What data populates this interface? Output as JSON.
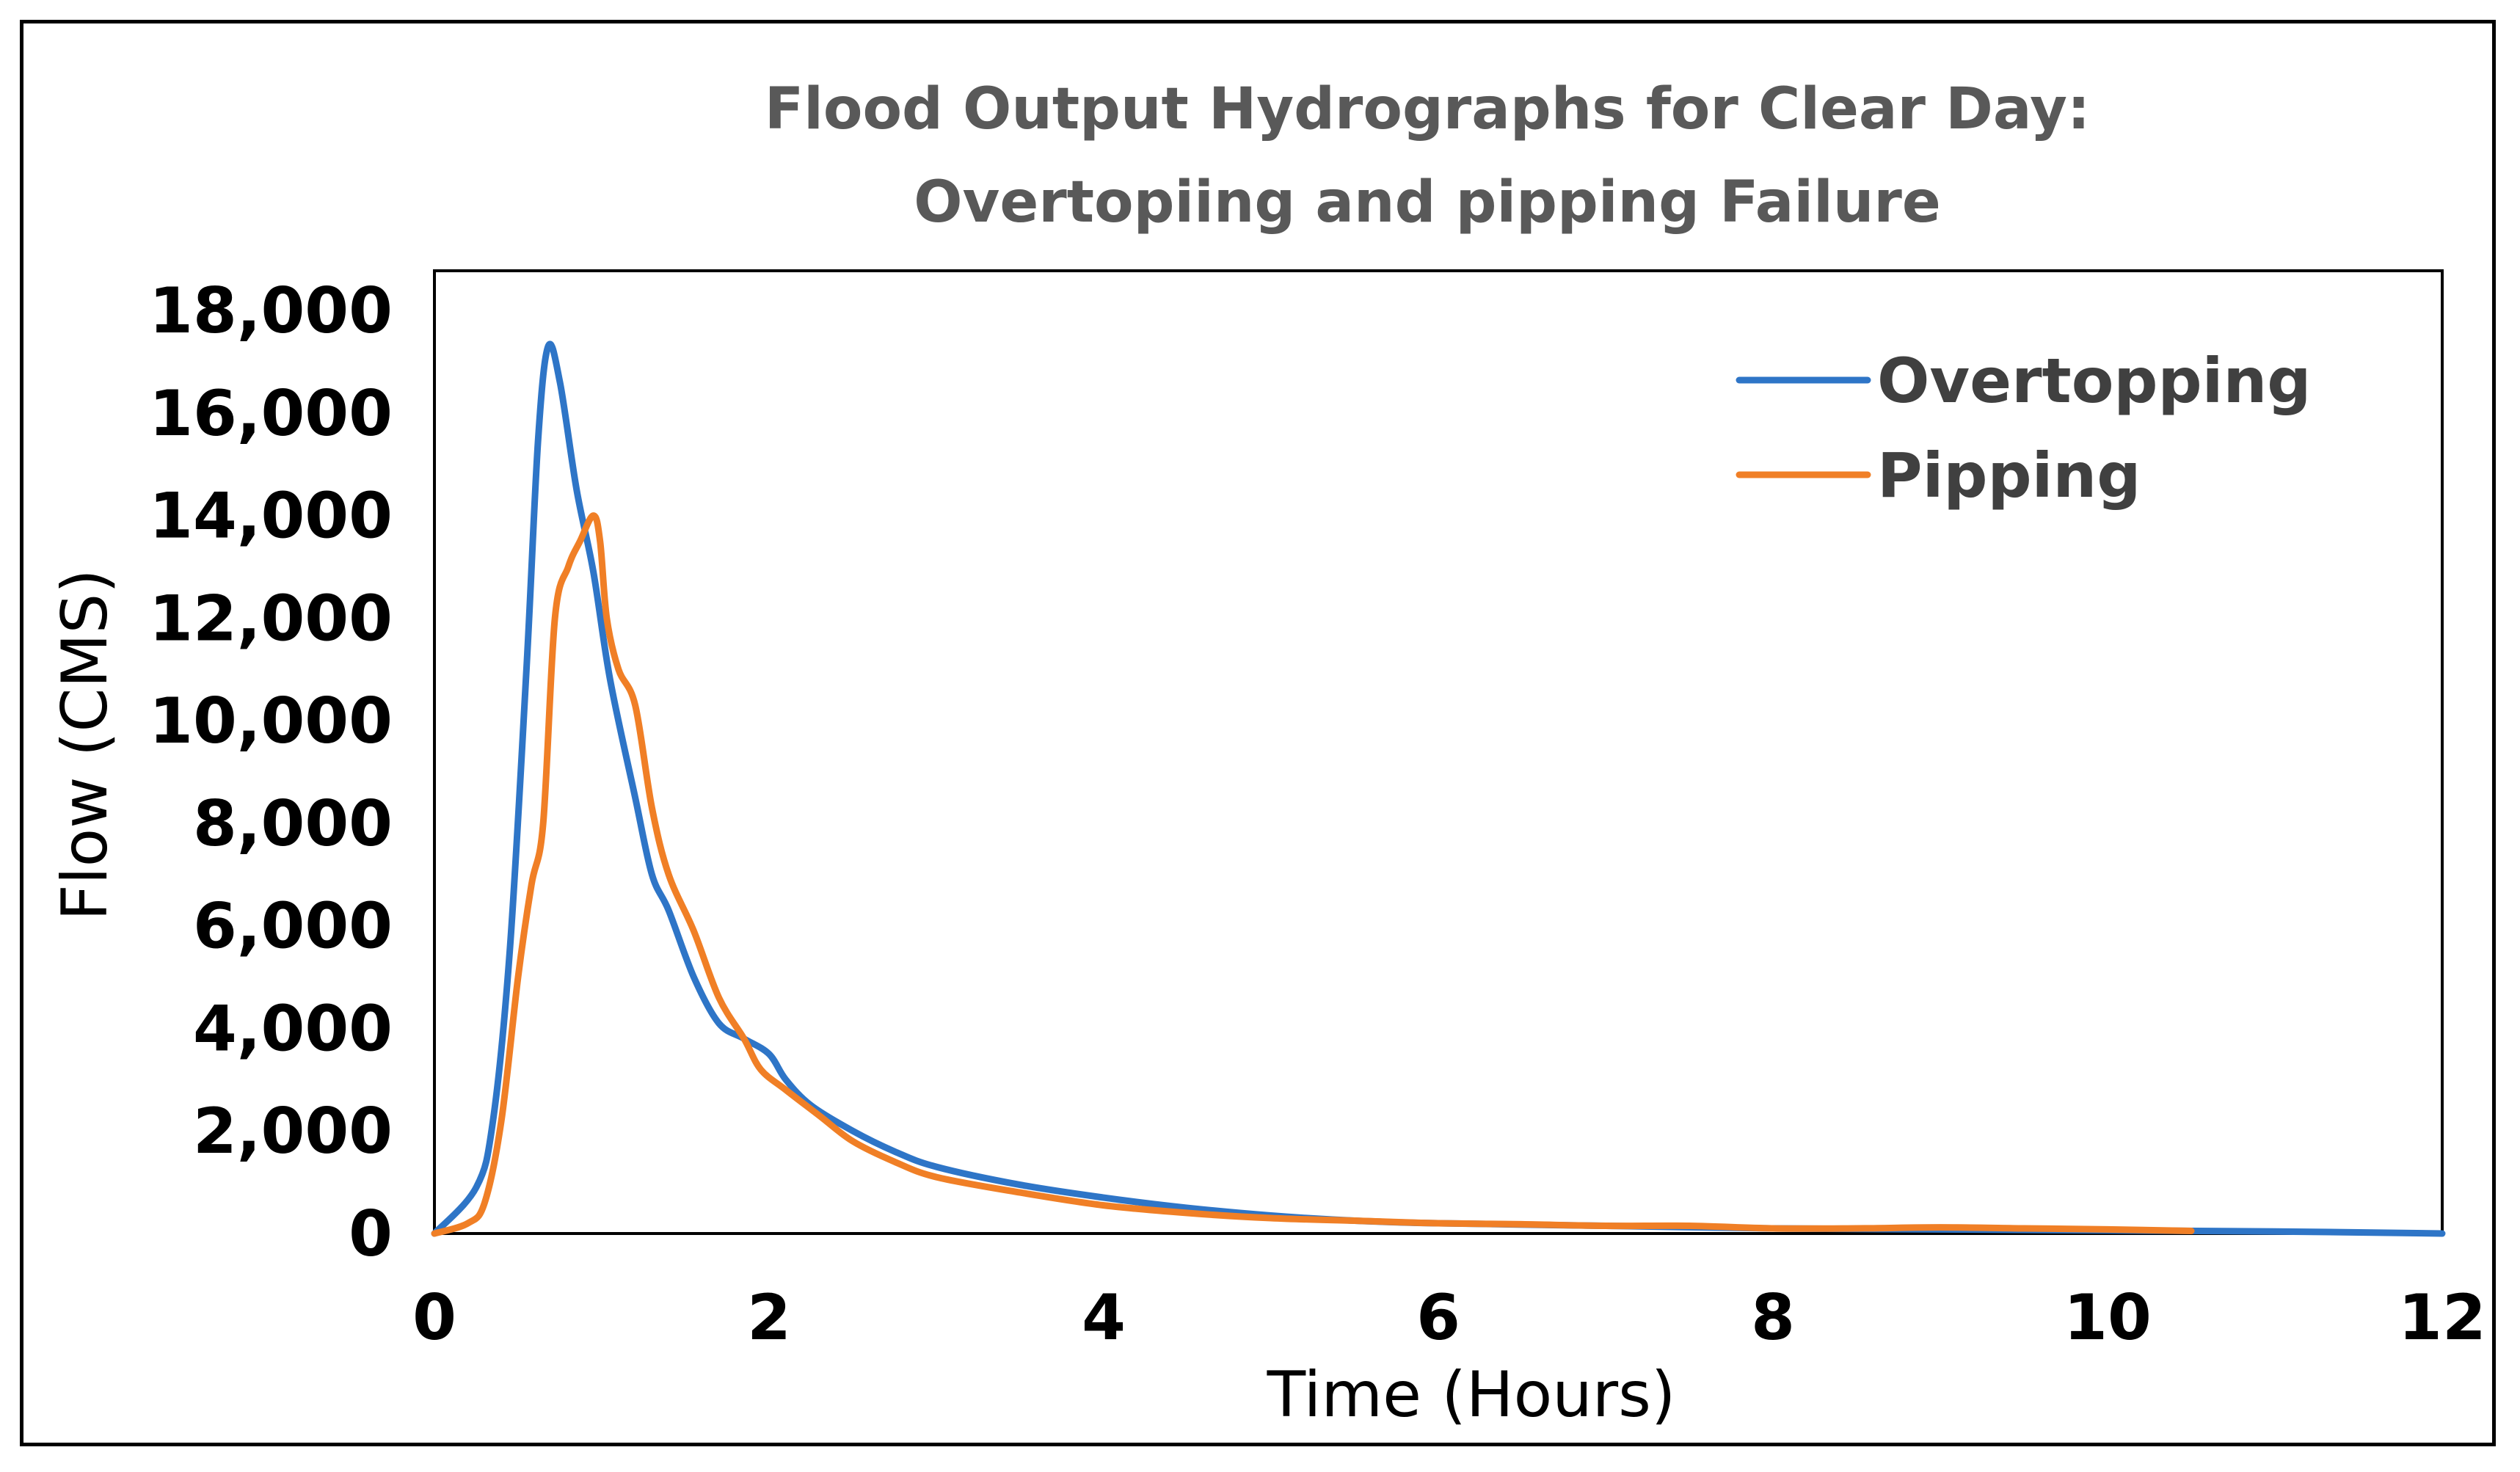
{
  "chart_data": {
    "type": "line",
    "title": [
      "Flood Output Hydrographs for Clear Day:",
      "Overtopiing and pipping Failure"
    ],
    "xlabel": "Time (Hours)",
    "ylabel": "Flow (CMS)",
    "xlim": [
      0,
      12
    ],
    "ylim": [
      0,
      18000
    ],
    "x_ticks": [
      0,
      2,
      4,
      6,
      8,
      10,
      12
    ],
    "x_tick_labels": [
      "0",
      "2",
      "4",
      "6",
      "8",
      "10",
      "12"
    ],
    "y_ticks": [
      0,
      2000,
      4000,
      6000,
      8000,
      10000,
      12000,
      14000,
      16000,
      18000
    ],
    "y_tick_labels": [
      "0",
      "2,000",
      "4,000",
      "6,000",
      "8,000",
      "10,000",
      "12,000",
      "14,000",
      "16,000",
      "18,000"
    ],
    "grid": false,
    "legend_position": "top-right",
    "series": [
      {
        "name": "Overtopping",
        "color": "#2E75C7",
        "x": [
          0,
          0.25,
          0.35,
          0.45,
          0.55,
          0.62,
          0.68,
          0.75,
          0.85,
          0.95,
          1.05,
          1.2,
          1.3,
          1.4,
          1.55,
          1.7,
          1.85,
          2.0,
          2.1,
          2.25,
          2.5,
          2.75,
          3.0,
          3.5,
          4.0,
          4.5,
          5.0,
          5.5,
          6.0,
          7.0,
          8.0,
          9.0,
          10.0,
          11.0,
          12.0
        ],
        "y": [
          0,
          900,
          2200,
          5500,
          11000,
          15500,
          17300,
          16600,
          14500,
          12900,
          10800,
          8500,
          7000,
          6300,
          5000,
          4100,
          3800,
          3500,
          3000,
          2500,
          2000,
          1600,
          1300,
          950,
          700,
          500,
          350,
          250,
          200,
          150,
          100,
          80,
          60,
          40,
          0
        ]
      },
      {
        "name": "Pipping",
        "color": "#F07F26",
        "x": [
          0,
          0.2,
          0.3,
          0.4,
          0.5,
          0.58,
          0.65,
          0.72,
          0.8,
          0.87,
          0.95,
          0.99,
          1.03,
          1.1,
          1.2,
          1.3,
          1.4,
          1.55,
          1.7,
          1.85,
          1.95,
          2.1,
          2.3,
          2.5,
          2.75,
          3.0,
          3.5,
          4.0,
          4.5,
          5.0,
          5.5,
          6.0,
          6.5,
          7.0,
          7.5,
          8.0,
          8.5,
          9.0,
          9.5,
          10.0,
          10.5
        ],
        "y": [
          0,
          200,
          600,
          2200,
          5000,
          6800,
          8000,
          12000,
          13000,
          13500,
          14000,
          13500,
          12000,
          11000,
          10300,
          8300,
          7000,
          5900,
          4600,
          3800,
          3200,
          2800,
          2300,
          1800,
          1400,
          1100,
          800,
          550,
          400,
          300,
          250,
          200,
          180,
          150,
          150,
          100,
          100,
          120,
          100,
          80,
          50
        ]
      }
    ]
  }
}
